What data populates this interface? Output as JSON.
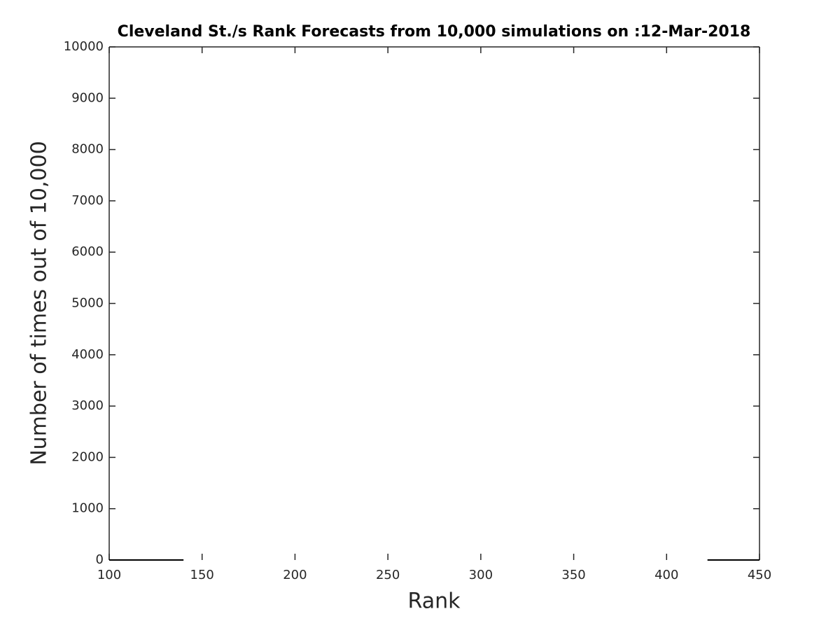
{
  "chart_data": {
    "type": "line",
    "title": "Cleveland St./s Rank Forecasts from 10,000 simulations on :12-Mar-2018",
    "xlabel": "Rank",
    "ylabel": "Number of times out of 10,000",
    "series": [
      {
        "color": "#000000",
        "x": [
          100,
          140
        ],
        "values": [
          0,
          0
        ]
      },
      {
        "color": "#000000",
        "x": [
          422,
          450
        ],
        "values": [
          0,
          0
        ]
      }
    ],
    "xlim": [
      100,
      450
    ],
    "xticks": [
      100,
      150,
      200,
      250,
      300,
      350,
      400,
      450
    ],
    "ylim": [
      0,
      10000
    ],
    "yticks": [
      0,
      1000,
      2000,
      3000,
      4000,
      5000,
      6000,
      7000,
      8000,
      9000,
      10000
    ],
    "grid": false
  }
}
